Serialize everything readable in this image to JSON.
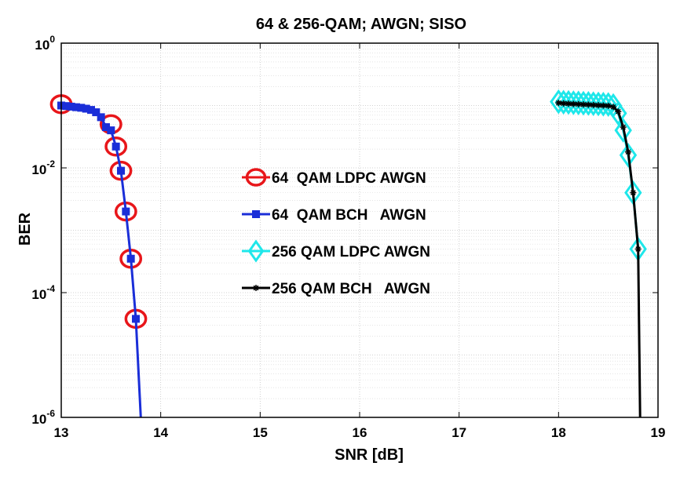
{
  "chart_data": {
    "type": "line",
    "title": "64 & 256-QAM; AWGN; SISO",
    "xlabel": "SNR [dB]",
    "ylabel": "BER",
    "xlim": [
      13,
      19
    ],
    "ylim": [
      1e-06,
      1
    ],
    "y_scale": "log",
    "x_ticks": [
      {
        "value": 13,
        "label": "13"
      },
      {
        "value": 14,
        "label": "14"
      },
      {
        "value": 15,
        "label": "15"
      },
      {
        "value": 16,
        "label": "16"
      },
      {
        "value": 17,
        "label": "17"
      },
      {
        "value": 18,
        "label": "18"
      },
      {
        "value": 19,
        "label": "19"
      }
    ],
    "y_ticks": [
      {
        "value": 1,
        "base": "10",
        "exp": "0"
      },
      {
        "value": 0.01,
        "base": "10",
        "exp": "-2"
      },
      {
        "value": 0.0001,
        "base": "10",
        "exp": "-4"
      },
      {
        "value": 1e-06,
        "base": "10",
        "exp": "-6"
      }
    ],
    "grid": true,
    "minor_grid": true,
    "legend_position": "center",
    "series": [
      {
        "name": "64  QAM LDPC AWGN",
        "color": "#e8161a",
        "marker": "circle",
        "line": false,
        "x": [
          13.0,
          13.5,
          13.55,
          13.6,
          13.65,
          13.7,
          13.75
        ],
        "y": [
          0.105,
          0.05,
          0.022,
          0.009,
          0.002,
          0.00035,
          3.8e-05
        ]
      },
      {
        "name": "64  QAM BCH   AWGN",
        "color": "#1a2ed8",
        "marker": "square",
        "line": true,
        "x": [
          13.0,
          13.05,
          13.1,
          13.15,
          13.2,
          13.25,
          13.3,
          13.35,
          13.4,
          13.45,
          13.5,
          13.55,
          13.6,
          13.65,
          13.7,
          13.75,
          13.8
        ],
        "y": [
          0.1,
          0.098,
          0.096,
          0.094,
          0.092,
          0.089,
          0.085,
          0.078,
          0.065,
          0.045,
          0.04,
          0.022,
          0.009,
          0.002,
          0.00035,
          3.8e-05,
          9e-07
        ]
      },
      {
        "name": "256 QAM LDPC AWGN",
        "color": "#1ee7ea",
        "marker": "diamond",
        "line": true,
        "x": [
          18.0,
          18.05,
          18.1,
          18.15,
          18.2,
          18.25,
          18.3,
          18.35,
          18.4,
          18.45,
          18.5,
          18.55,
          18.6,
          18.65,
          18.7,
          18.75,
          18.8
        ],
        "y": [
          0.115,
          0.113,
          0.112,
          0.111,
          0.11,
          0.109,
          0.108,
          0.107,
          0.106,
          0.105,
          0.104,
          0.1,
          0.075,
          0.04,
          0.016,
          0.004,
          0.0005
        ]
      },
      {
        "name": "256 QAM BCH   AWGN",
        "color": "#000000",
        "marker": "star",
        "line": true,
        "x": [
          18.0,
          18.05,
          18.1,
          18.15,
          18.2,
          18.25,
          18.3,
          18.35,
          18.4,
          18.45,
          18.5,
          18.55,
          18.6,
          18.65,
          18.7,
          18.75,
          18.8,
          18.82
        ],
        "y": [
          0.11,
          0.108,
          0.107,
          0.106,
          0.105,
          0.104,
          0.103,
          0.102,
          0.101,
          0.1,
          0.099,
          0.095,
          0.08,
          0.045,
          0.018,
          0.004,
          0.0005,
          9e-07
        ]
      }
    ]
  }
}
